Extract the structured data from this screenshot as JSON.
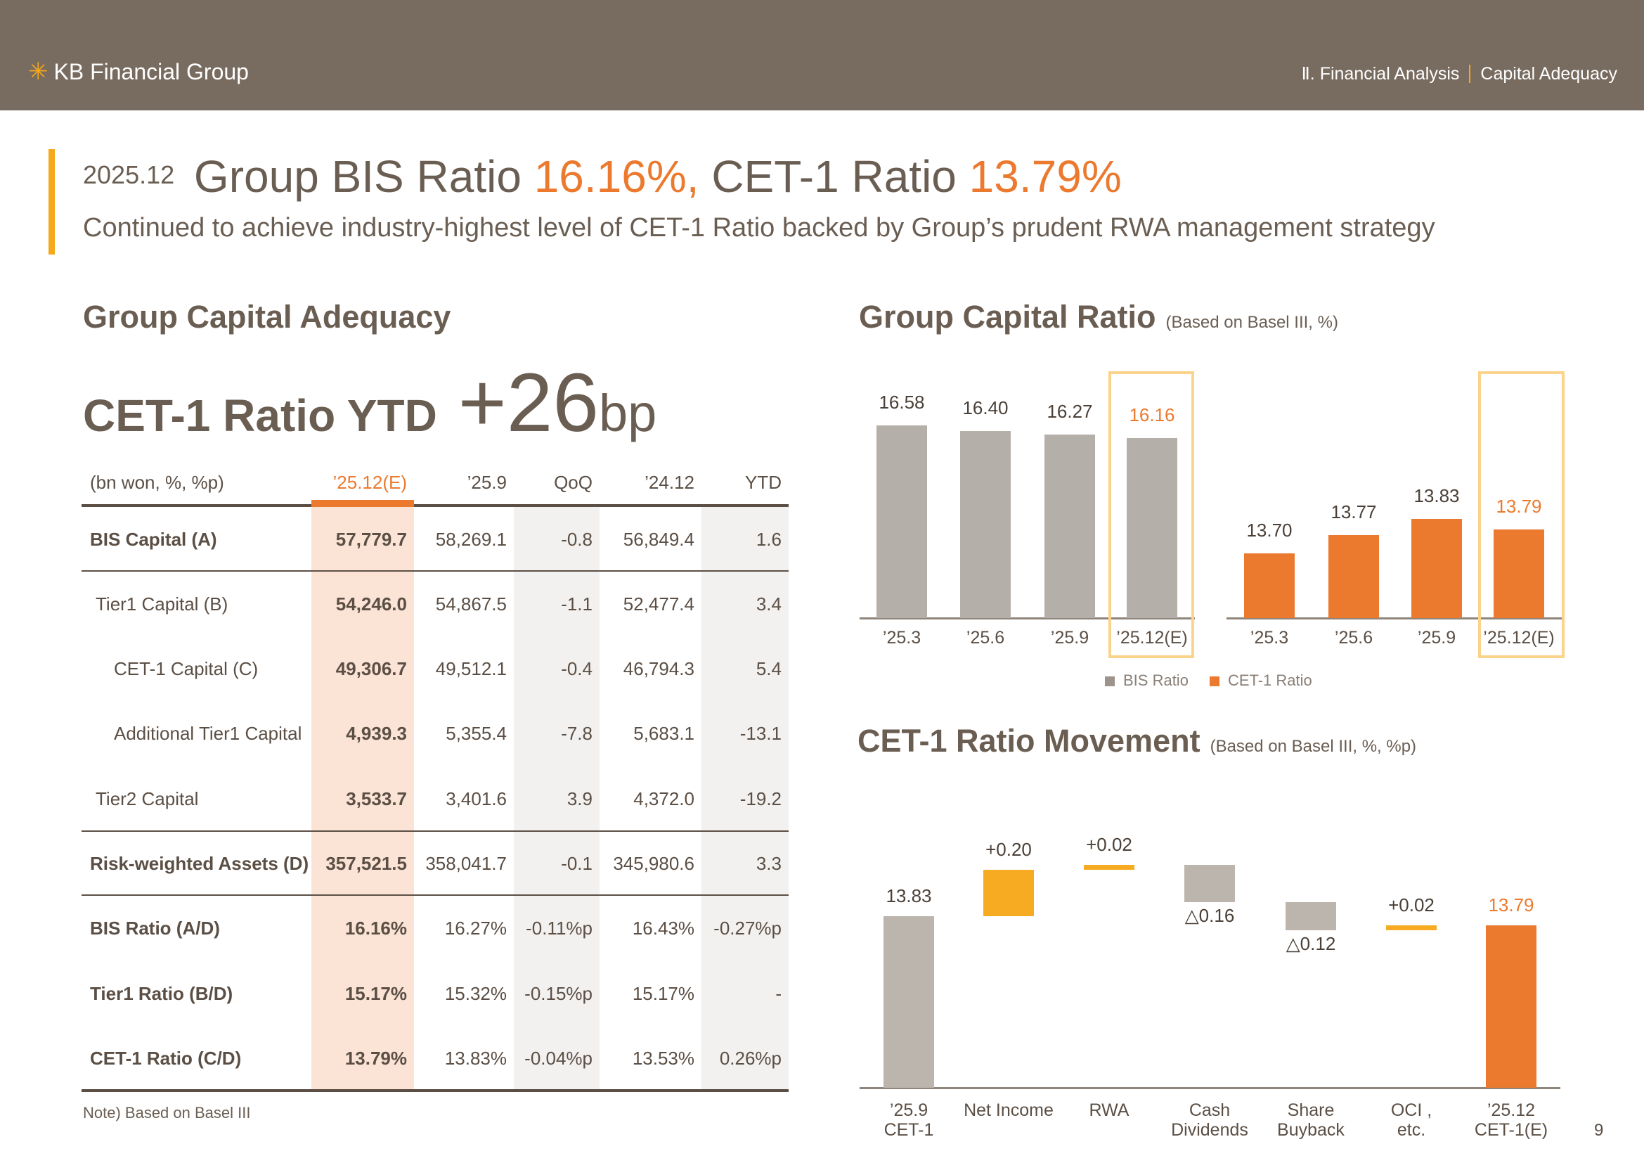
{
  "header": {
    "logo_text": "KB Financial Group",
    "breadcrumb_section": "Ⅱ. Financial Analysis",
    "breadcrumb_page": "Capital Adequacy"
  },
  "headline": {
    "date": "2025.12",
    "bis_label": "Group BIS Ratio",
    "bis_value": "16.16%,",
    "cet_label": "CET-1 Ratio",
    "cet_value": "13.79%",
    "subtitle": "Continued to achieve industry-highest level of CET-1 Ratio backed by Group’s prudent RWA management strategy"
  },
  "left": {
    "section_title": "Group Capital Adequacy",
    "ytd_label": "CET-1 Ratio YTD",
    "ytd_value": "+26",
    "ytd_unit": "bp",
    "table": {
      "unit": "(bn won, %, %p)",
      "columns": [
        "’25.12(E)",
        "’25.9",
        "QoQ",
        "’24.12",
        "YTD"
      ],
      "rows": [
        {
          "label": "BIS Capital (A)",
          "values": [
            "57,779.7",
            "58,269.1",
            "-0.8",
            "56,849.4",
            "1.6"
          ]
        },
        {
          "label": "Tier1 Capital (B)",
          "values": [
            "54,246.0",
            "54,867.5",
            "-1.1",
            "52,477.4",
            "3.4"
          ]
        },
        {
          "label": "CET-1 Capital (C)",
          "values": [
            "49,306.7",
            "49,512.1",
            "-0.4",
            "46,794.3",
            "5.4"
          ]
        },
        {
          "label": "Additional Tier1 Capital",
          "values": [
            "4,939.3",
            "5,355.4",
            "-7.8",
            "5,683.1",
            "-13.1"
          ]
        },
        {
          "label": "Tier2 Capital",
          "values": [
            "3,533.7",
            "3,401.6",
            "3.9",
            "4,372.0",
            "-19.2"
          ]
        },
        {
          "label": "Risk-weighted Assets (D)",
          "values": [
            "357,521.5",
            "358,041.7",
            "-0.1",
            "345,980.6",
            "3.3"
          ]
        },
        {
          "label": "BIS Ratio (A/D)",
          "values": [
            "16.16%",
            "16.27%",
            "-0.11%p",
            "16.43%",
            "-0.27%p"
          ]
        },
        {
          "label": "Tier1 Ratio (B/D)",
          "values": [
            "15.17%",
            "15.32%",
            "-0.15%p",
            "15.17%",
            "-"
          ]
        },
        {
          "label": "CET-1 Ratio (C/D)",
          "values": [
            "13.79%",
            "13.83%",
            "-0.04%p",
            "13.53%",
            "0.26%p"
          ]
        }
      ]
    },
    "note": "Note) Based on Basel III"
  },
  "right": {
    "ratio_title": "Group Capital Ratio",
    "ratio_subtitle": "(Based on Basel III, %)",
    "movement_title": "CET-1 Ratio Movement",
    "movement_subtitle": "(Based on Basel III, %, %p)"
  },
  "page_number": "9",
  "chart_data": [
    {
      "type": "bar",
      "title": "Group Capital Ratio",
      "subtitle": "(Based on Basel III, %)",
      "categories": [
        "’25.3",
        "’25.6",
        "’25.9",
        "’25.12(E)"
      ],
      "series": [
        {
          "name": "BIS Ratio",
          "values": [
            16.58,
            16.4,
            16.27,
            16.16
          ],
          "labels": [
            "16.58",
            "16.40",
            "16.27",
            "16.16"
          ],
          "color": "#b5afa9"
        },
        {
          "name": "CET-1 Ratio",
          "values": [
            13.7,
            13.77,
            13.83,
            13.79
          ],
          "labels": [
            "13.70",
            "13.77",
            "13.83",
            "13.79"
          ],
          "color": "#eb7a2f"
        }
      ],
      "legend": "bottom",
      "highlight": "’25.12(E)"
    },
    {
      "type": "bar",
      "subtype": "waterfall",
      "title": "CET-1 Ratio Movement",
      "subtitle": "(Based on Basel III, %, %p)",
      "categories": [
        [
          "’25.9",
          "CET-1"
        ],
        [
          "Net Income",
          ""
        ],
        [
          "RWA",
          ""
        ],
        [
          "Cash",
          "Dividends"
        ],
        [
          "Share",
          "Buyback"
        ],
        [
          "OCI ,",
          "etc."
        ],
        [
          "’25.12",
          "CET-1(E)"
        ]
      ],
      "values": [
        13.83,
        0.2,
        0.02,
        -0.16,
        -0.12,
        0.02,
        13.79
      ],
      "labels": [
        "13.83",
        "+0.20",
        "+0.02",
        "△0.16",
        "△0.12",
        "+0.02",
        "13.79"
      ],
      "kinds": [
        "total",
        "up",
        "up",
        "down",
        "down",
        "up",
        "total"
      ],
      "colors": {
        "start": "#bbb5ad",
        "up": "#f7ab22",
        "down": "#bbb5ad",
        "end": "#eb7a2f"
      }
    }
  ]
}
